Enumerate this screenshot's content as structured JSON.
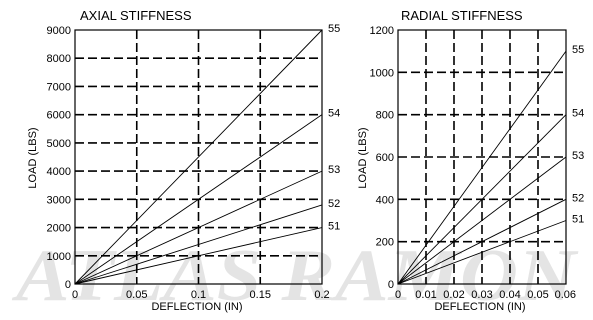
{
  "watermark": {
    "text": "ATLAS RAMON"
  },
  "chart_data": [
    {
      "id": "axial",
      "type": "line",
      "title": "AXIAL STIFFNESS",
      "xlabel": "DEFLECTION (IN)",
      "ylabel": "LOAD (LBS)",
      "xlim": [
        0,
        0.2
      ],
      "ylim": [
        0,
        9000
      ],
      "xticks": [
        0,
        0.05,
        0.1,
        0.15,
        0.2
      ],
      "xtick_labels": [
        "0",
        "0.05",
        "0.1",
        "0.15",
        "0.2"
      ],
      "yticks": [
        0,
        1000,
        2000,
        3000,
        4000,
        5000,
        6000,
        7000,
        8000,
        9000
      ],
      "ytick_labels": [
        "0",
        "1000",
        "2000",
        "3000",
        "4000",
        "5000",
        "6000",
        "7000",
        "8000",
        "9000"
      ],
      "grid": true,
      "series": [
        {
          "name": "55",
          "x": [
            0,
            0.2
          ],
          "y": [
            0,
            9000
          ]
        },
        {
          "name": "54",
          "x": [
            0,
            0.2
          ],
          "y": [
            0,
            6000
          ]
        },
        {
          "name": "53",
          "x": [
            0,
            0.2
          ],
          "y": [
            0,
            4000
          ]
        },
        {
          "name": "52",
          "x": [
            0,
            0.2
          ],
          "y": [
            0,
            2800
          ]
        },
        {
          "name": "51",
          "x": [
            0,
            0.2
          ],
          "y": [
            0,
            2000
          ]
        }
      ]
    },
    {
      "id": "radial",
      "type": "line",
      "title": "RADIAL STIFFNESS",
      "xlabel": "DEFLECTION (IN)",
      "ylabel": "LOAD (LBS)",
      "xlim": [
        0,
        0.06
      ],
      "ylim": [
        0,
        1200
      ],
      "xticks": [
        0,
        0.01,
        0.02,
        0.03,
        0.04,
        0.05,
        0.06
      ],
      "xtick_labels": [
        "0",
        "0.01",
        "0.02",
        "0.03",
        "0.04",
        "0.05",
        "0.06"
      ],
      "yticks": [
        0,
        200,
        400,
        600,
        800,
        1000,
        1200
      ],
      "ytick_labels": [
        "0",
        "200",
        "400",
        "600",
        "800",
        "1000",
        "1200"
      ],
      "grid": true,
      "series": [
        {
          "name": "55",
          "x": [
            0,
            0.06
          ],
          "y": [
            0,
            1100
          ]
        },
        {
          "name": "54",
          "x": [
            0,
            0.06
          ],
          "y": [
            0,
            800
          ]
        },
        {
          "name": "53",
          "x": [
            0,
            0.06
          ],
          "y": [
            0,
            600
          ]
        },
        {
          "name": "52",
          "x": [
            0,
            0.06
          ],
          "y": [
            0,
            400
          ]
        },
        {
          "name": "51",
          "x": [
            0,
            0.06
          ],
          "y": [
            0,
            300
          ]
        }
      ]
    }
  ]
}
